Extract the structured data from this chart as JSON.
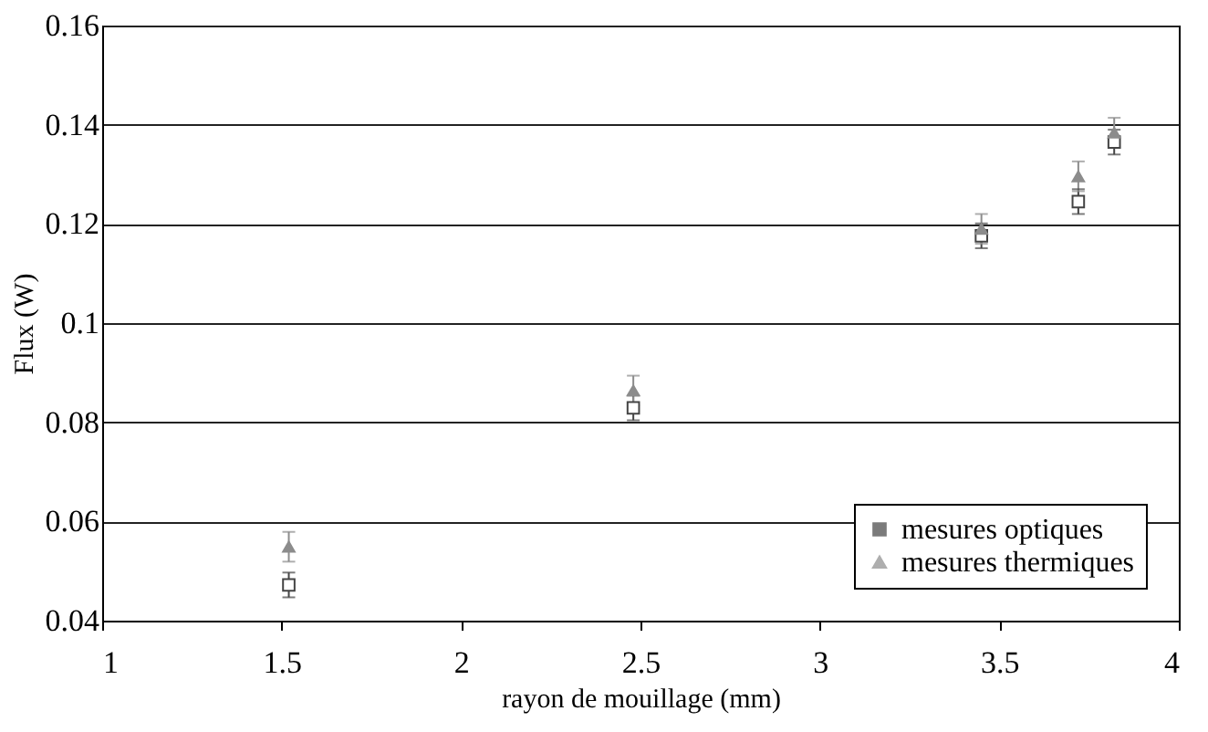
{
  "chart_data": {
    "type": "scatter",
    "xlabel": "rayon de mouillage (mm)",
    "ylabel": "Flux (W)",
    "x": [
      1.52,
      2.48,
      3.45,
      3.72,
      3.82
    ],
    "series": [
      {
        "name": "mesures optiques",
        "color": "#444444",
        "marker": "square",
        "values": [
          0.0472,
          0.0829,
          0.1176,
          0.1245,
          0.1365
        ],
        "errors": [
          0.0025,
          0.0025,
          0.0025,
          0.0025,
          0.0025
        ]
      },
      {
        "name": "mesures thermiques",
        "color": "#8c8c8c",
        "marker": "triangle",
        "values": [
          0.0549,
          0.0864,
          0.119,
          0.1296,
          0.1384
        ],
        "errors": [
          0.003,
          0.003,
          0.003,
          0.003,
          0.003
        ]
      }
    ],
    "xlim": [
      1,
      4
    ],
    "xticks": [
      1,
      1.5,
      2,
      2.5,
      3,
      3.5,
      4
    ],
    "ylim": [
      0.04,
      0.16
    ],
    "yticks": [
      0.04,
      0.06,
      0.08,
      0.1,
      0.12,
      0.14,
      0.16
    ],
    "grid": "y",
    "legend": "bottom right"
  }
}
